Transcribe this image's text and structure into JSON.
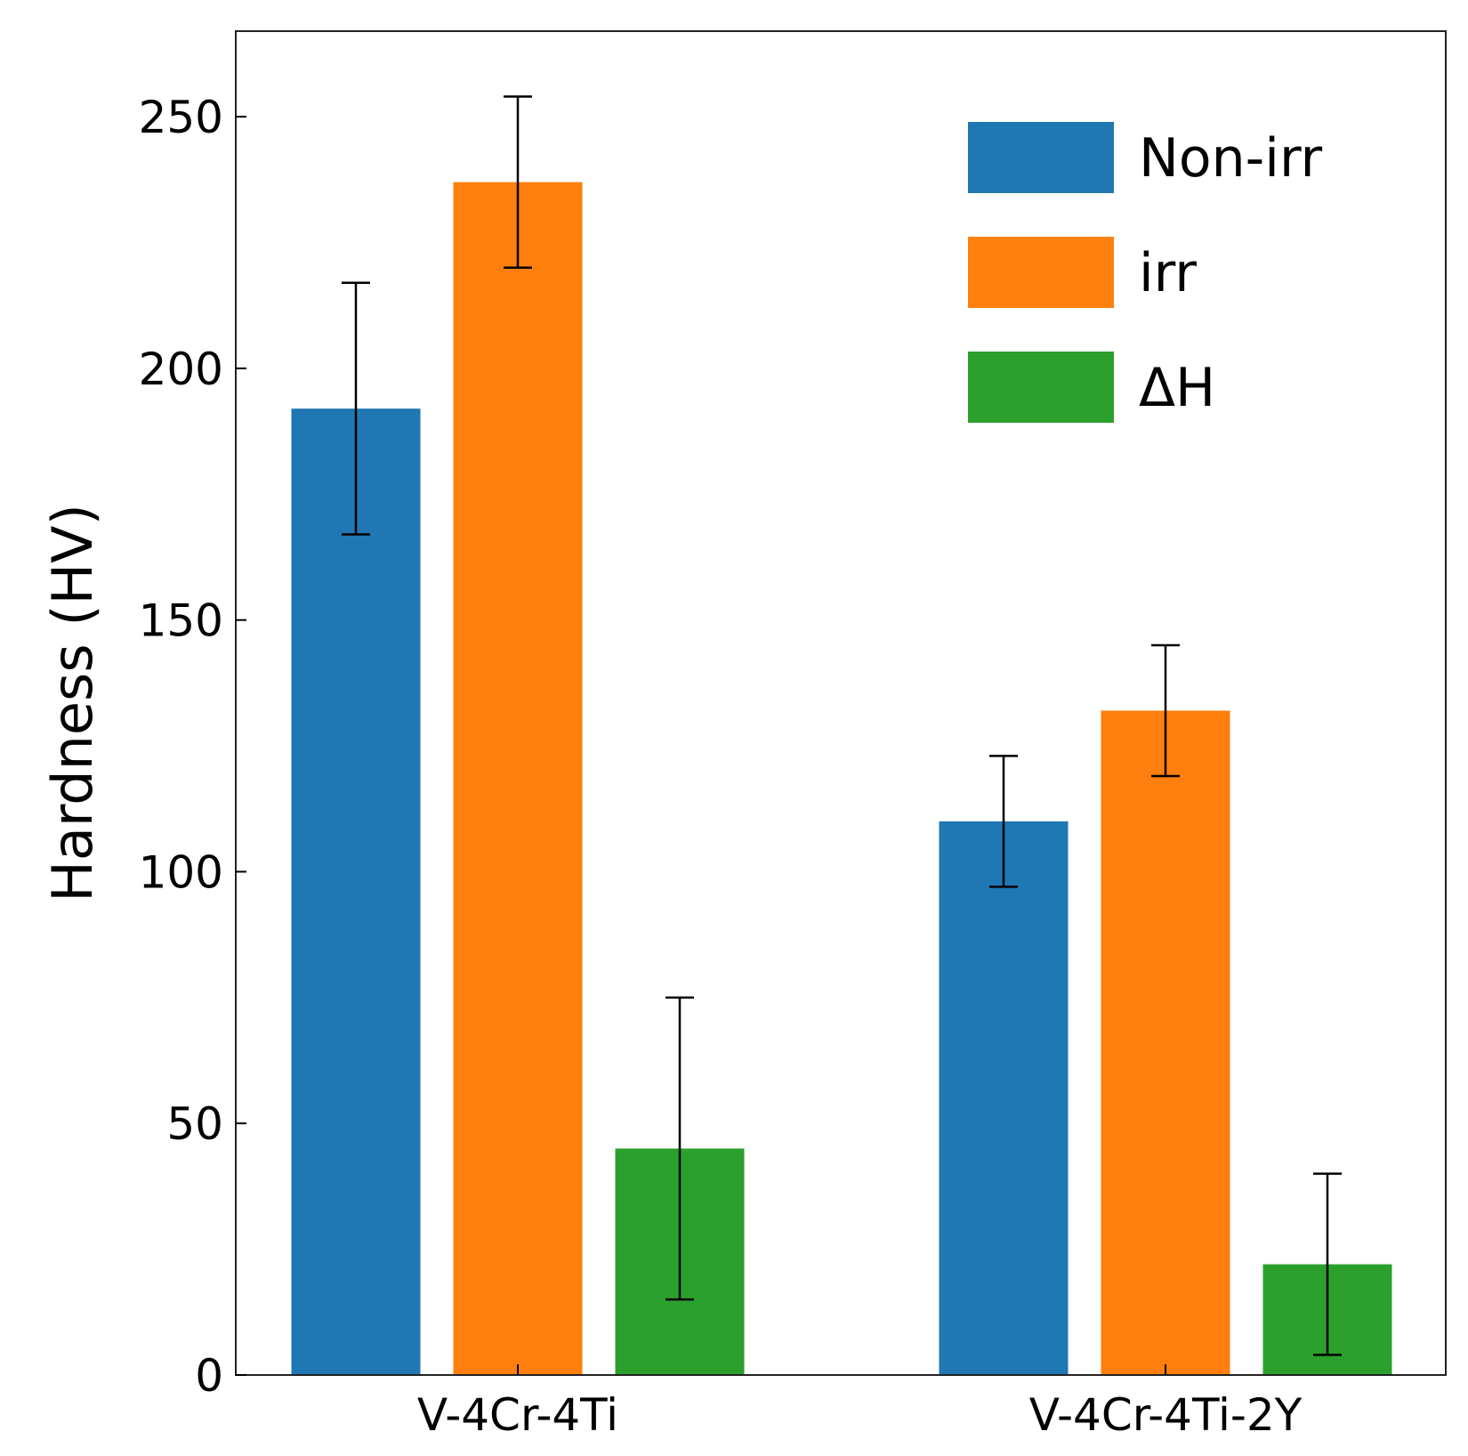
{
  "chart_data": {
    "type": "bar",
    "title": "",
    "xlabel": "",
    "ylabel": "Hardness (HV)",
    "ylim": [
      0,
      267
    ],
    "yticks": [
      0,
      50,
      100,
      150,
      200,
      250
    ],
    "categories": [
      "V-4Cr-4Ti",
      "V-4Cr-4Ti-2Y"
    ],
    "series": [
      {
        "name": "Non-irr",
        "color": "#1f77b4",
        "values": [
          192,
          110
        ],
        "errors": [
          25,
          13
        ]
      },
      {
        "name": "irr",
        "color": "#ff7f0e",
        "values": [
          237,
          132
        ],
        "errors": [
          17,
          13
        ]
      },
      {
        "name": "ΔH",
        "color": "#2ca02c",
        "values": [
          45,
          22
        ],
        "errors": [
          30,
          18
        ]
      }
    ],
    "legend_position": "top-right",
    "grid": false
  }
}
